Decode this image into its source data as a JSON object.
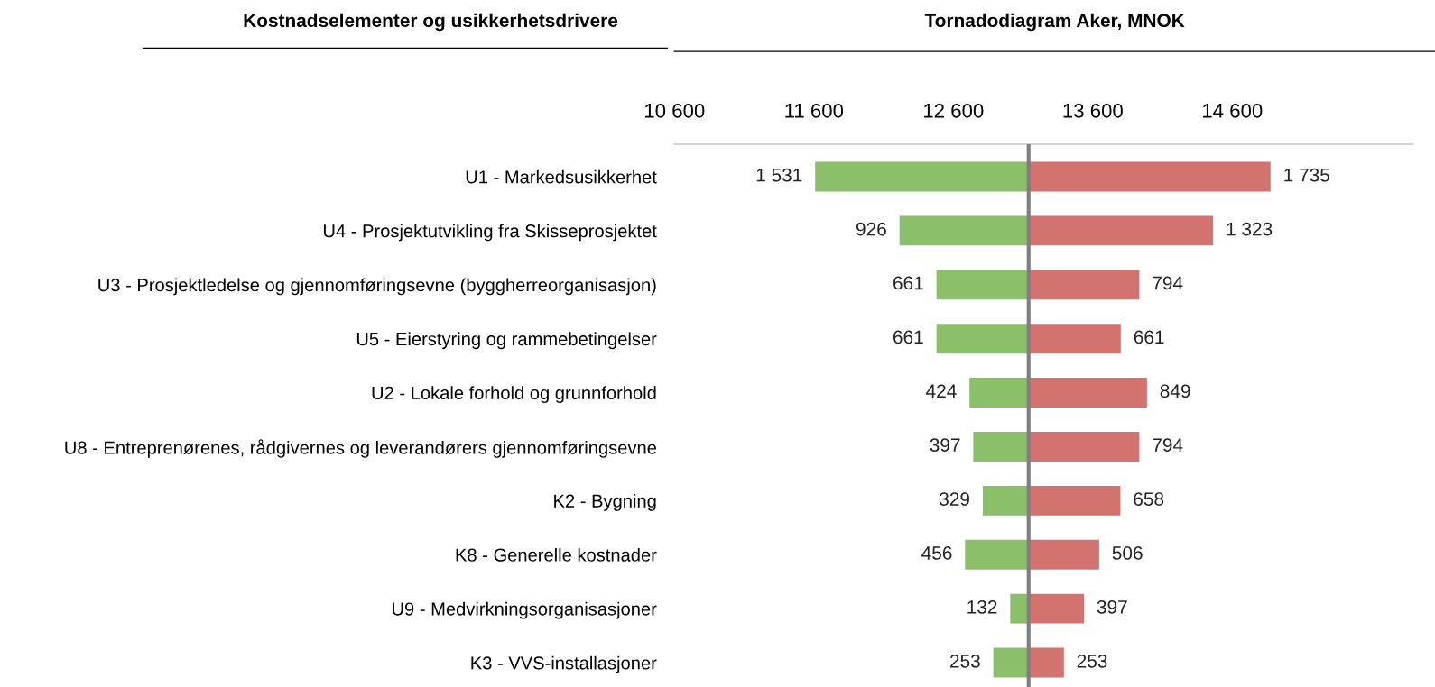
{
  "chart_data": {
    "type": "bar",
    "orientation": "horizontal",
    "title": "Tornadodiagram Aker, MNOK",
    "annotations": [
      "Kostnadselementer og usikkerhetsdrivere"
    ],
    "categories": [
      "U1 - Markedsusikkerhet",
      "U4 - Prosjektutvikling fra Skisseprosjektet",
      "U3 - Prosjektledelse og gjennomføringsevne (byggherreorganisasjon)",
      "U5 - Eierstyring og rammebetingelser",
      "U2 - Lokale forhold og grunnforhold",
      "U8 - Entreprenørenes, rådgivernes og leverandørers gjennomføringsevne",
      "K2 - Bygning",
      "K8 - Generelle kostnader",
      "U9 - Medvirkningsorganisasjoner",
      "K3 - VVS-installasjoner"
    ],
    "series": [
      {
        "color": "#8bbf6a",
        "values": [
          1531,
          926,
          661,
          661,
          424,
          397,
          329,
          456,
          132,
          253
        ],
        "base": [
          11609,
          12214,
          12479,
          12479,
          12716,
          12743,
          12811,
          12684,
          13008,
          12887
        ],
        "value_labels": [
          "1 531",
          "926",
          "661",
          "661",
          "424",
          "397",
          "329",
          "456",
          "132",
          "253"
        ]
      },
      {
        "color": "#d2736f",
        "values": [
          1735,
          1323,
          794,
          661,
          849,
          794,
          658,
          506,
          397,
          253
        ],
        "base": [
          13140,
          13140,
          13140,
          13140,
          13140,
          13140,
          13140,
          13140,
          13140,
          13140
        ],
        "value_labels": [
          "1 735",
          "1 323",
          "794",
          "661",
          "849",
          "794",
          "658",
          "506",
          "397",
          "253"
        ]
      }
    ],
    "xlim": [
      10600,
      15900
    ],
    "xticks": [
      {
        "value": 10600,
        "label": "10 600"
      },
      {
        "value": 11600,
        "label": "11 600"
      },
      {
        "value": 12600,
        "label": "12 600"
      },
      {
        "value": 13600,
        "label": "13 600"
      },
      {
        "value": 14600,
        "label": "14 600"
      }
    ],
    "ref_lines": [
      {
        "axis": "x",
        "value": 13140,
        "color": "#7f7f7f"
      }
    ],
    "grid": false,
    "legend": false
  }
}
